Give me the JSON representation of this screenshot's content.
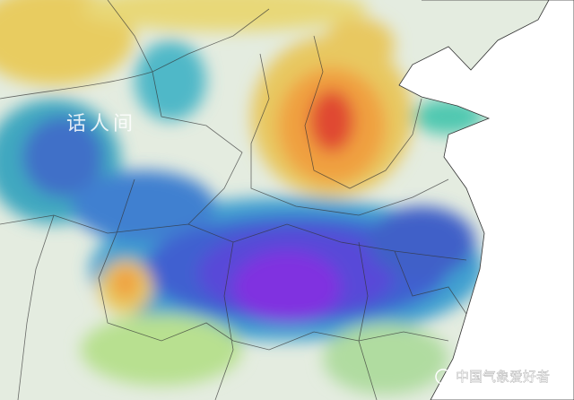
{
  "watermark": "话人间",
  "source": "中国气象爱好者"
}
